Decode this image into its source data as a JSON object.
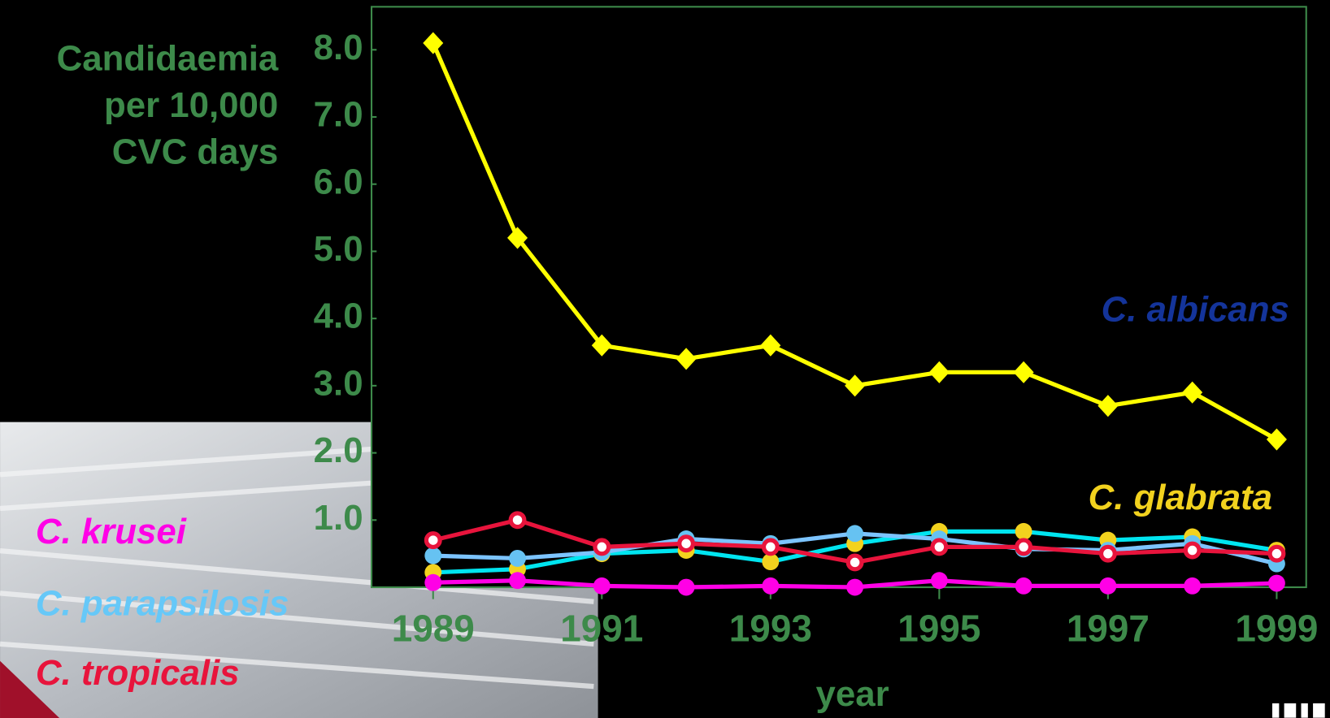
{
  "chart_data": {
    "type": "line",
    "y_label": [
      "Candidaemia",
      "per 10,000",
      "CVC days"
    ],
    "x_label": "year",
    "x": [
      1989,
      1990,
      1991,
      1992,
      1993,
      1994,
      1995,
      1996,
      1997,
      1998,
      1999
    ],
    "xlim": [
      1988.27,
      1999.35
    ],
    "xticks": [
      1989,
      1991,
      1993,
      1995,
      1997,
      1999
    ],
    "ylim": [
      0,
      8.64
    ],
    "yticks": [
      {
        "value": 1,
        "label": "1.0"
      },
      {
        "value": 2,
        "label": "2.0"
      },
      {
        "value": 3,
        "label": "3.0"
      },
      {
        "value": 4,
        "label": "4.0"
      },
      {
        "value": 5,
        "label": "5.0"
      },
      {
        "value": 6,
        "label": "6.0"
      },
      {
        "value": 7,
        "label": "7.0"
      },
      {
        "value": 8,
        "label": "8.0"
      }
    ],
    "series": [
      {
        "name": "C. albicans",
        "color": "#ffff00",
        "marker": "diamond",
        "marker_color": "#ffff00",
        "label_color": "#14349a",
        "values": [
          8.1,
          5.2,
          3.6,
          3.4,
          3.6,
          3.0,
          3.2,
          3.2,
          2.7,
          2.9,
          2.2
        ]
      },
      {
        "name": "C. glabrata",
        "color": "#00e5f0",
        "marker": "circle",
        "marker_color": "#f2d21e",
        "label_color": "#f2d21e",
        "values": [
          0.22,
          0.27,
          0.5,
          0.55,
          0.38,
          0.65,
          0.83,
          0.83,
          0.7,
          0.75,
          0.55
        ]
      },
      {
        "name": "C. parapsilosis",
        "color": "#7cc4ff",
        "marker": "circle",
        "marker_color": "#66c2f2",
        "label_color": "#66c8f8",
        "values": [
          0.47,
          0.43,
          0.52,
          0.72,
          0.65,
          0.8,
          0.72,
          0.57,
          0.55,
          0.65,
          0.35
        ]
      },
      {
        "name": "C. tropicalis",
        "color": "#e8143c",
        "marker": "ring",
        "marker_color": "#e8143c",
        "label_color": "#e8143c",
        "values": [
          0.7,
          1.0,
          0.6,
          0.65,
          0.6,
          0.37,
          0.6,
          0.6,
          0.5,
          0.55,
          0.5
        ]
      },
      {
        "name": "C. krusei",
        "color": "#ff00e6",
        "marker": "circle",
        "marker_color": "#ff00e6",
        "label_color": "#ff00e6",
        "values": [
          0.07,
          0.1,
          0.02,
          0.0,
          0.02,
          0.0,
          0.1,
          0.02,
          0.02,
          0.02,
          0.06
        ]
      }
    ]
  }
}
